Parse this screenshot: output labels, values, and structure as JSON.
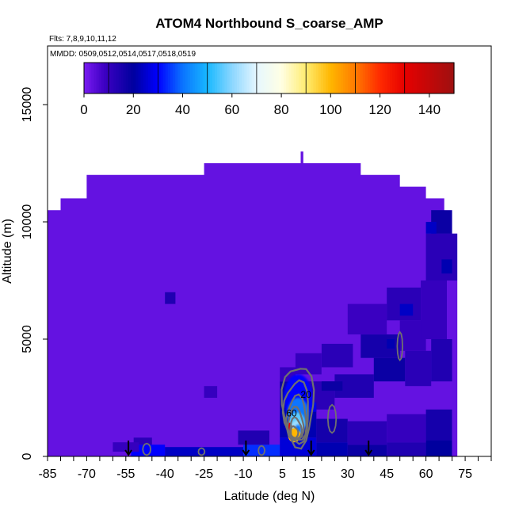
{
  "chart_data": {
    "type": "heatmap",
    "title": "ATOM4 Northbound S_coarse_AMP",
    "subtitle_flights": "Flts: 7,8,9,10,11,12",
    "subtitle_dates": "MMDD: 0509,0512,0514,0517,0518,0519",
    "xlabel": "Latitude (deg N)",
    "ylabel": "Altitude (m)",
    "xlim": [
      -85,
      85
    ],
    "ylim": [
      0,
      17500
    ],
    "x_ticks": [
      -85,
      -70,
      -55,
      -40,
      -25,
      -10,
      5,
      15,
      30,
      45,
      60,
      75
    ],
    "x_minor_step": 5,
    "y_ticks": [
      0,
      5000,
      10000,
      15000
    ],
    "colorbar": {
      "min": 0,
      "max": 150,
      "ticks": [
        0,
        20,
        40,
        60,
        80,
        100,
        120,
        140
      ],
      "stops": [
        {
          "v": 0,
          "c": "#7a1cf2"
        },
        {
          "v": 8,
          "c": "#3f00c4"
        },
        {
          "v": 20,
          "c": "#00009e"
        },
        {
          "v": 30,
          "c": "#0000ff"
        },
        {
          "v": 40,
          "c": "#0a74ff"
        },
        {
          "v": 50,
          "c": "#18b8ff"
        },
        {
          "v": 60,
          "c": "#8bd6ff"
        },
        {
          "v": 70,
          "c": "#e6f7ff"
        },
        {
          "v": 80,
          "c": "#ffffe4"
        },
        {
          "v": 90,
          "c": "#ffec70"
        },
        {
          "v": 100,
          "c": "#ffb600"
        },
        {
          "v": 110,
          "c": "#ff7a00"
        },
        {
          "v": 120,
          "c": "#ff2a00"
        },
        {
          "v": 130,
          "c": "#e60000"
        },
        {
          "v": 150,
          "c": "#9e1010"
        }
      ]
    },
    "flight_markers_lat": [
      -54,
      -9,
      16,
      38
    ],
    "contour_labels": [
      {
        "text": "20",
        "lat": 14,
        "alt": 2500
      },
      {
        "text": "60",
        "lat": 8.5,
        "alt": 1700
      }
    ],
    "coverage_outline": [
      [
        -86,
        0
      ],
      [
        -86,
        10500
      ],
      [
        -80,
        10500
      ],
      [
        -80,
        11000
      ],
      [
        -70,
        11000
      ],
      [
        -70,
        12000
      ],
      [
        -25,
        12000
      ],
      [
        -25,
        12500
      ],
      [
        12,
        12500
      ],
      [
        12,
        13000
      ],
      [
        13,
        13000
      ],
      [
        13,
        12500
      ],
      [
        35,
        12500
      ],
      [
        35,
        12000
      ],
      [
        50,
        12000
      ],
      [
        50,
        11500
      ],
      [
        60,
        11500
      ],
      [
        60,
        11000
      ],
      [
        67,
        11000
      ],
      [
        67,
        10500
      ],
      [
        70,
        10500
      ],
      [
        70,
        9500
      ],
      [
        72,
        9500
      ],
      [
        72,
        0
      ]
    ],
    "background_value": 3,
    "cells": [
      {
        "lat": [
          -53,
          -40
        ],
        "alt": [
          0,
          500
        ],
        "v": 30
      },
      {
        "lat": [
          -40,
          -10
        ],
        "alt": [
          0,
          400
        ],
        "v": 24
      },
      {
        "lat": [
          -10,
          4
        ],
        "alt": [
          0,
          500
        ],
        "v": 34
      },
      {
        "lat": [
          4,
          18
        ],
        "alt": [
          0,
          800
        ],
        "v": 26
      },
      {
        "lat": [
          18,
          30
        ],
        "alt": [
          0,
          600
        ],
        "v": 22
      },
      {
        "lat": [
          30,
          45
        ],
        "alt": [
          0,
          500
        ],
        "v": 18
      },
      {
        "lat": [
          45,
          60
        ],
        "alt": [
          0,
          600
        ],
        "v": 14
      },
      {
        "lat": [
          60,
          70
        ],
        "alt": [
          0,
          700
        ],
        "v": 20
      },
      {
        "lat": [
          -52,
          -45
        ],
        "alt": [
          500,
          800
        ],
        "v": 12
      },
      {
        "lat": [
          -12,
          0
        ],
        "alt": [
          500,
          1100
        ],
        "v": 14
      },
      {
        "lat": [
          4,
          18
        ],
        "alt": [
          800,
          2000
        ],
        "v": 22
      },
      {
        "lat": [
          18,
          30
        ],
        "alt": [
          600,
          1600
        ],
        "v": 16
      },
      {
        "lat": [
          30,
          45
        ],
        "alt": [
          500,
          1500
        ],
        "v": 12
      },
      {
        "lat": [
          45,
          60
        ],
        "alt": [
          600,
          1800
        ],
        "v": 10
      },
      {
        "lat": [
          60,
          70
        ],
        "alt": [
          700,
          2000
        ],
        "v": 16
      },
      {
        "lat": [
          4,
          14
        ],
        "alt": [
          2000,
          3200
        ],
        "v": 18
      },
      {
        "lat": [
          14,
          25
        ],
        "alt": [
          2000,
          3200
        ],
        "v": 12
      },
      {
        "lat": [
          25,
          40
        ],
        "alt": [
          2500,
          3500
        ],
        "v": 14
      },
      {
        "lat": [
          40,
          52
        ],
        "alt": [
          3200,
          4200
        ],
        "v": 18
      },
      {
        "lat": [
          52,
          62
        ],
        "alt": [
          3000,
          4500
        ],
        "v": 12
      },
      {
        "lat": [
          62,
          70
        ],
        "alt": [
          3200,
          5000
        ],
        "v": 14
      },
      {
        "lat": [
          4,
          10
        ],
        "alt": [
          3200,
          3800
        ],
        "v": 10
      },
      {
        "lat": [
          10,
          20
        ],
        "alt": [
          3500,
          4400
        ],
        "v": 10
      },
      {
        "lat": [
          20,
          32
        ],
        "alt": [
          3800,
          4800
        ],
        "v": 12
      },
      {
        "lat": [
          35,
          50
        ],
        "alt": [
          4200,
          5200
        ],
        "v": 16
      },
      {
        "lat": [
          50,
          60
        ],
        "alt": [
          4500,
          5800
        ],
        "v": 10
      },
      {
        "lat": [
          30,
          45
        ],
        "alt": [
          5200,
          6500
        ],
        "v": 9
      },
      {
        "lat": [
          45,
          58
        ],
        "alt": [
          5800,
          7200
        ],
        "v": 12
      },
      {
        "lat": [
          58,
          68
        ],
        "alt": [
          5000,
          7500
        ],
        "v": 10
      },
      {
        "lat": [
          60,
          72
        ],
        "alt": [
          7500,
          9500
        ],
        "v": 12
      },
      {
        "lat": [
          62,
          70
        ],
        "alt": [
          9500,
          10500
        ],
        "v": 18
      },
      {
        "lat": [
          -40,
          -36
        ],
        "alt": [
          6500,
          7000
        ],
        "v": 14
      },
      {
        "lat": [
          -25,
          -20
        ],
        "alt": [
          2500,
          3000
        ],
        "v": 10
      },
      {
        "lat": [
          50,
          55
        ],
        "alt": [
          6000,
          6500
        ],
        "v": 24
      },
      {
        "lat": [
          66,
          70
        ],
        "alt": [
          7800,
          8400
        ],
        "v": 22
      },
      {
        "lat": [
          60,
          64
        ],
        "alt": [
          9500,
          10000
        ],
        "v": 24
      },
      {
        "lat": [
          45,
          48
        ],
        "alt": [
          4600,
          5000
        ],
        "v": 22
      },
      {
        "lat": [
          20,
          28
        ],
        "alt": [
          2800,
          3200
        ],
        "v": 18
      },
      {
        "lat": [
          9,
          13
        ],
        "alt": [
          1900,
          2300
        ],
        "v": 30
      },
      {
        "lat": [
          13,
          18
        ],
        "alt": [
          1900,
          2300
        ],
        "v": 28
      },
      {
        "lat": [
          -60,
          -50
        ],
        "alt": [
          200,
          600
        ],
        "v": 10
      }
    ],
    "blob": [
      {
        "lat": 11,
        "alt": 2500,
        "sx": 5.5,
        "sy": 1000,
        "v": 30
      },
      {
        "lat": 11,
        "alt": 1800,
        "sx": 4.2,
        "sy": 700,
        "v": 40
      },
      {
        "lat": 10.5,
        "alt": 1400,
        "sx": 3.2,
        "sy": 480,
        "v": 56
      },
      {
        "lat": 10.5,
        "alt": 1200,
        "sx": 2.4,
        "sy": 330,
        "v": 62
      },
      {
        "lat": 11,
        "alt": 1150,
        "sx": 1.3,
        "sy": 200,
        "v": 40
      }
    ],
    "contour_levels": [
      20,
      40,
      60,
      80,
      100,
      120
    ]
  }
}
